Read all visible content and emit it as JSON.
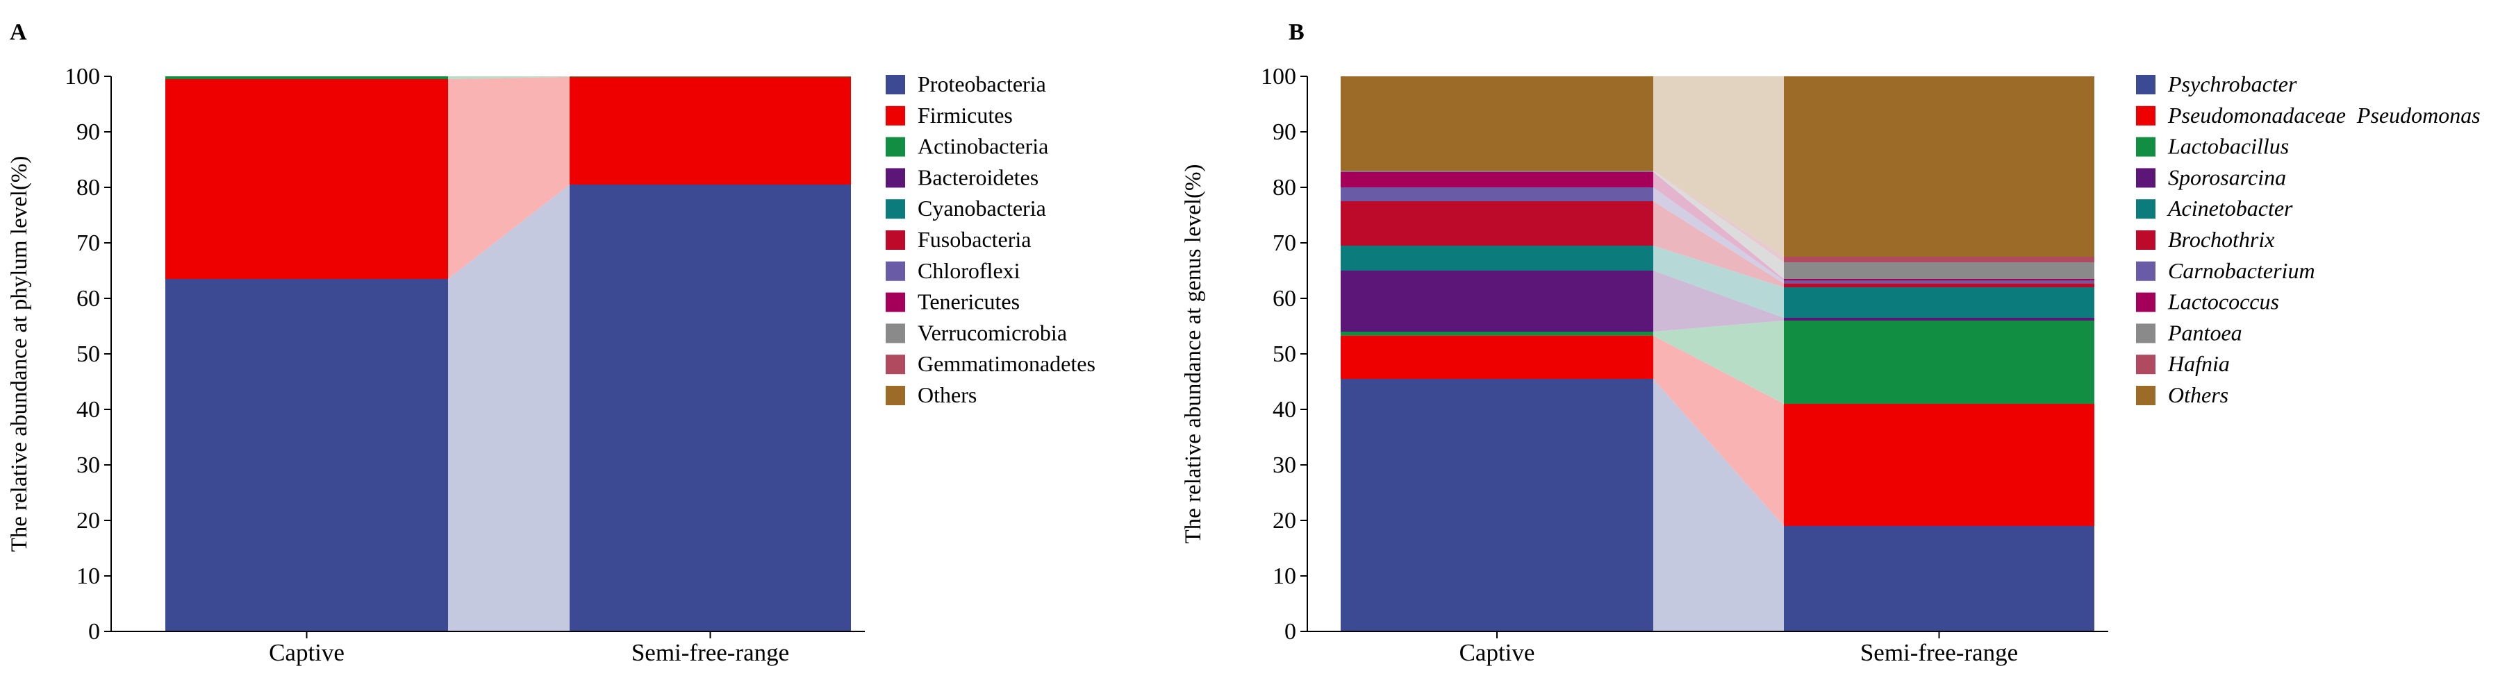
{
  "chart_data": [
    {
      "panel": "A",
      "type": "stacked-bar",
      "ylabel": "The relative abundance at phylum level(%)",
      "ylim": [
        0,
        100
      ],
      "yticks": [
        0,
        10,
        20,
        30,
        40,
        50,
        60,
        70,
        80,
        90,
        100
      ],
      "categories": [
        "Captive",
        "Semi-free-range"
      ],
      "legend_position": "right",
      "legend_italic": false,
      "series": [
        {
          "name": "Proteobacteria",
          "color": "#3b4a93",
          "values": [
            63.5,
            80.5
          ]
        },
        {
          "name": "Firmicutes",
          "color": "#ee0000",
          "values": [
            36.0,
            19.4
          ]
        },
        {
          "name": "Actinobacteria",
          "color": "#118e42",
          "values": [
            0.5,
            0.1
          ]
        },
        {
          "name": "Bacteroidetes",
          "color": "#5c1677",
          "values": [
            0,
            0
          ]
        },
        {
          "name": "Cyanobacteria",
          "color": "#0b7c7b",
          "values": [
            0,
            0
          ]
        },
        {
          "name": "Fusobacteria",
          "color": "#be0a2a",
          "values": [
            0,
            0
          ]
        },
        {
          "name": "Chloroflexi",
          "color": "#6a5ba6",
          "values": [
            0,
            0
          ]
        },
        {
          "name": "Tenericutes",
          "color": "#a4005a",
          "values": [
            0,
            0
          ]
        },
        {
          "name": "Verrucomicrobia",
          "color": "#8a8a8a",
          "values": [
            0,
            0
          ]
        },
        {
          "name": "Gemmatimonadetes",
          "color": "#b04a5e",
          "values": [
            0,
            0
          ]
        },
        {
          "name": "Others",
          "color": "#9c6b28",
          "values": [
            0,
            0
          ]
        }
      ]
    },
    {
      "panel": "B",
      "type": "stacked-bar",
      "ylabel": "The relative abundance  at genus level(%)",
      "ylim": [
        0,
        100
      ],
      "yticks": [
        0,
        10,
        20,
        30,
        40,
        50,
        60,
        70,
        80,
        90,
        100
      ],
      "categories": [
        "Captive",
        "Semi-free-range"
      ],
      "legend_position": "right",
      "legend_italic": true,
      "series": [
        {
          "name": "Psychrobacter",
          "color": "#3b4a93",
          "values": [
            45.5,
            19.0
          ]
        },
        {
          "name": "Pseudomonadaceae  Pseudomonas",
          "color": "#ee0000",
          "values": [
            7.8,
            22.0
          ]
        },
        {
          "name": "Lactobacillus",
          "color": "#118e42",
          "values": [
            0.7,
            15.0
          ]
        },
        {
          "name": "Sporosarcina",
          "color": "#5c1677",
          "values": [
            11.0,
            0.5
          ]
        },
        {
          "name": "Acinetobacter",
          "color": "#0b7c7b",
          "values": [
            4.5,
            5.5
          ]
        },
        {
          "name": "Brochothrix",
          "color": "#be0a2a",
          "values": [
            8.0,
            0.7
          ]
        },
        {
          "name": "Carnobacterium",
          "color": "#6a5ba6",
          "values": [
            2.5,
            0.5
          ]
        },
        {
          "name": "Lactococcus",
          "color": "#a4005a",
          "values": [
            2.8,
            0.3
          ]
        },
        {
          "name": "Pantoea",
          "color": "#8a8a8a",
          "values": [
            0.2,
            3.0
          ]
        },
        {
          "name": "Hafnia",
          "color": "#b04a5e",
          "values": [
            0,
            1.0
          ]
        },
        {
          "name": "Others",
          "color": "#9c6b28",
          "values": [
            17.0,
            32.5
          ]
        }
      ]
    }
  ]
}
